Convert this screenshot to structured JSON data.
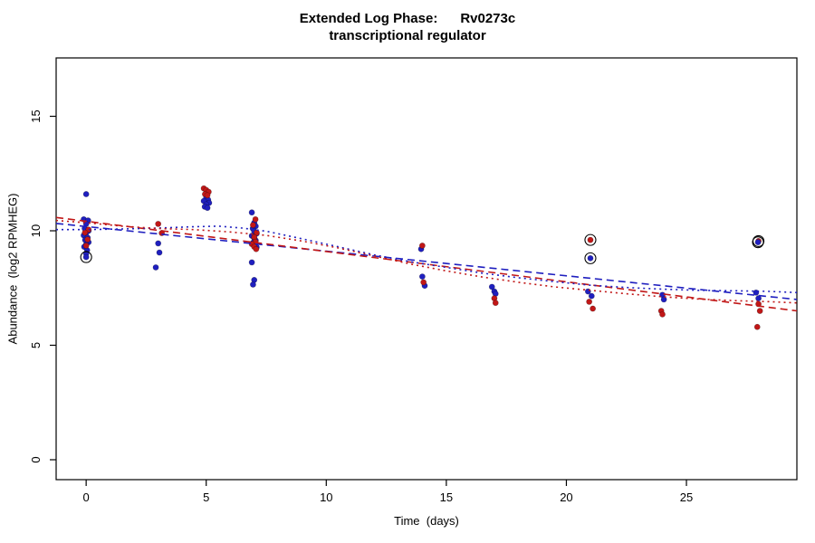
{
  "title": {
    "line1": "Extended Log Phase:      Rv0273c",
    "line2": "transcriptional regulator"
  },
  "axes": {
    "x_label": "Time  (days)",
    "y_label": "Abundance  (log2 RPMHEG)"
  },
  "chart_data": {
    "type": "scatter",
    "title": "Extended Log Phase: Rv0273c transcriptional regulator",
    "xlabel": "Time (days)",
    "ylabel": "Abundance (log2 RPMHEG)",
    "xlim": [
      -1.25,
      29.6
    ],
    "ylim": [
      -0.87,
      17.55
    ],
    "x_ticks": [
      0,
      5,
      10,
      15,
      20,
      25
    ],
    "y_ticks": [
      0,
      5,
      10,
      15
    ],
    "grid": false,
    "legend": "none",
    "colors": {
      "blue": "#1f1fbf",
      "red": "#c11717",
      "ring": "#000000"
    },
    "series": [
      {
        "name": "blue-points",
        "color": "#1f1fbf",
        "points": [
          [
            0,
            11.6
          ],
          [
            -0.1,
            10.5
          ],
          [
            0.08,
            10.45
          ],
          [
            0,
            10.3
          ],
          [
            -0.06,
            10.1
          ],
          [
            0.1,
            10.0
          ],
          [
            0,
            9.9
          ],
          [
            -0.1,
            9.8
          ],
          [
            0.06,
            9.7
          ],
          [
            -0.04,
            9.6
          ],
          [
            0.1,
            9.5
          ],
          [
            0,
            9.4
          ],
          [
            -0.08,
            9.3
          ],
          [
            0.04,
            9.15
          ],
          [
            0,
            9.0
          ],
          [
            3,
            9.45
          ],
          [
            3.05,
            9.05
          ],
          [
            2.9,
            8.4
          ],
          [
            5,
            11.45
          ],
          [
            5.08,
            11.35
          ],
          [
            4.9,
            11.3
          ],
          [
            5.12,
            11.22
          ],
          [
            5,
            11.15
          ],
          [
            4.94,
            11.05
          ],
          [
            5.05,
            11.0
          ],
          [
            6.9,
            10.8
          ],
          [
            7,
            10.35
          ],
          [
            7.06,
            10.2
          ],
          [
            6.94,
            10.1
          ],
          [
            7,
            9.98
          ],
          [
            7.1,
            9.88
          ],
          [
            6.9,
            9.78
          ],
          [
            7,
            9.68
          ],
          [
            7.06,
            9.58
          ],
          [
            6.95,
            9.48
          ],
          [
            7,
            9.38
          ],
          [
            7.1,
            9.28
          ],
          [
            6.9,
            8.62
          ],
          [
            7,
            7.85
          ],
          [
            6.95,
            7.65
          ],
          [
            13.95,
            9.2
          ],
          [
            14,
            8.0
          ],
          [
            14.1,
            7.6
          ],
          [
            16.9,
            7.55
          ],
          [
            17,
            7.35
          ],
          [
            17.05,
            7.25
          ],
          [
            20.9,
            7.35
          ],
          [
            21.05,
            7.15
          ],
          [
            24,
            7.2
          ],
          [
            24.06,
            7.0
          ],
          [
            27.9,
            7.3
          ],
          [
            28,
            7.05
          ]
        ]
      },
      {
        "name": "red-points",
        "color": "#c11717",
        "points": [
          [
            0.1,
            10.05
          ],
          [
            -0.05,
            9.92
          ],
          [
            0.06,
            9.62
          ],
          [
            0,
            9.35
          ],
          [
            3,
            10.3
          ],
          [
            3.15,
            9.9
          ],
          [
            4.9,
            11.85
          ],
          [
            5,
            11.78
          ],
          [
            5.1,
            11.7
          ],
          [
            4.95,
            11.6
          ],
          [
            5.05,
            11.55
          ],
          [
            7.05,
            10.5
          ],
          [
            6.95,
            10.25
          ],
          [
            7.1,
            9.92
          ],
          [
            7,
            9.72
          ],
          [
            7.05,
            9.52
          ],
          [
            6.9,
            9.42
          ],
          [
            7,
            9.3
          ],
          [
            7.08,
            9.2
          ],
          [
            14,
            9.35
          ],
          [
            14.05,
            7.75
          ],
          [
            17,
            7.05
          ],
          [
            17.05,
            6.85
          ],
          [
            20.95,
            6.9
          ],
          [
            21.1,
            6.6
          ],
          [
            23.95,
            6.5
          ],
          [
            24,
            6.35
          ],
          [
            28,
            6.8
          ],
          [
            28.06,
            6.5
          ],
          [
            27.95,
            5.8
          ]
        ]
      }
    ],
    "circled_points": [
      {
        "x": 0,
        "y": 8.85,
        "color": "#1f1fbf"
      },
      {
        "x": 21,
        "y": 9.6,
        "color": "#c11717"
      },
      {
        "x": 21,
        "y": 8.8,
        "color": "#1f1fbf"
      },
      {
        "x": 28,
        "y": 9.55,
        "color": "#c11717"
      },
      {
        "x": 27.98,
        "y": 9.5,
        "color": "#1f1fbf"
      }
    ],
    "trend_lines": [
      {
        "name": "blue-dashed-fit",
        "color": "#1f1fbf",
        "dash": "8,5",
        "points": [
          [
            -1.25,
            10.32
          ],
          [
            29.6,
            7.0
          ]
        ]
      },
      {
        "name": "red-dashed-fit",
        "color": "#c11717",
        "dash": "8,5",
        "points": [
          [
            -1.25,
            10.58
          ],
          [
            29.6,
            6.5
          ]
        ]
      },
      {
        "name": "blue-dotted-fit",
        "color": "#1f1fbf",
        "dash": "2,4",
        "points": [
          [
            -1.25,
            10.05
          ],
          [
            0,
            10.05
          ],
          [
            1.5,
            10.08
          ],
          [
            3,
            10.12
          ],
          [
            4.5,
            10.18
          ],
          [
            5.5,
            10.2
          ],
          [
            6.5,
            10.12
          ],
          [
            7.5,
            9.98
          ],
          [
            9,
            9.65
          ],
          [
            10.5,
            9.3
          ],
          [
            12,
            8.95
          ],
          [
            13.5,
            8.65
          ],
          [
            15,
            8.4
          ],
          [
            16.5,
            8.15
          ],
          [
            18,
            7.95
          ],
          [
            19.5,
            7.78
          ],
          [
            21,
            7.62
          ],
          [
            22.5,
            7.52
          ],
          [
            24,
            7.45
          ],
          [
            25.5,
            7.4
          ],
          [
            27,
            7.38
          ],
          [
            28.5,
            7.35
          ],
          [
            29.6,
            7.3
          ]
        ]
      },
      {
        "name": "red-dotted-fit",
        "color": "#c11717",
        "dash": "2,4",
        "points": [
          [
            -1.25,
            10.45
          ],
          [
            0,
            10.35
          ],
          [
            1.5,
            10.2
          ],
          [
            3,
            10.1
          ],
          [
            4.5,
            10.05
          ],
          [
            6,
            9.95
          ],
          [
            7.5,
            9.8
          ],
          [
            9,
            9.55
          ],
          [
            10.5,
            9.25
          ],
          [
            12,
            8.9
          ],
          [
            13.5,
            8.55
          ],
          [
            15,
            8.25
          ],
          [
            16.5,
            7.98
          ],
          [
            18,
            7.75
          ],
          [
            19.5,
            7.55
          ],
          [
            21,
            7.4
          ],
          [
            22.5,
            7.25
          ],
          [
            24,
            7.12
          ],
          [
            25.5,
            7.02
          ],
          [
            27,
            6.95
          ],
          [
            28.5,
            6.9
          ],
          [
            29.6,
            6.85
          ]
        ]
      }
    ]
  }
}
